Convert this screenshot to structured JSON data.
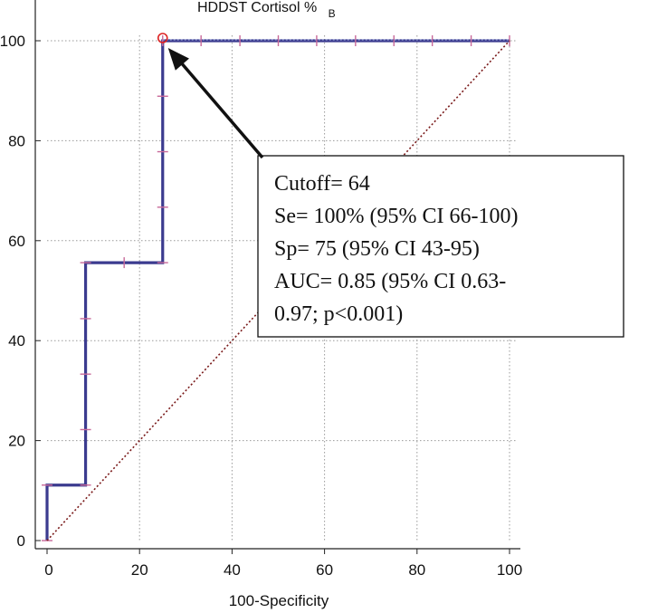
{
  "chart_data": {
    "type": "line",
    "title": "HDDST Cortisol %",
    "title_subscript": "B",
    "xlabel": "100-Specificity",
    "ylabel": "",
    "xlim": [
      0,
      100
    ],
    "ylim": [
      0,
      100
    ],
    "xticks": [
      0,
      20,
      40,
      60,
      80,
      100
    ],
    "yticks": [
      0,
      20,
      40,
      60,
      80,
      100
    ],
    "grid": true,
    "series": [
      {
        "style": "step",
        "color": "#3b3b8f",
        "x": [
          0,
          0,
          8.33,
          8.33,
          25,
          25,
          100
        ],
        "y": [
          0,
          11.1,
          11.1,
          55.6,
          55.6,
          100,
          100
        ],
        "markers": [
          [
            0,
            0
          ],
          [
            0,
            11.1
          ],
          [
            8.33,
            11.1
          ],
          [
            8.33,
            22.2
          ],
          [
            8.33,
            33.3
          ],
          [
            8.33,
            44.4
          ],
          [
            8.33,
            55.6
          ],
          [
            16.67,
            55.6
          ],
          [
            25,
            55.6
          ],
          [
            25,
            66.7
          ],
          [
            25,
            77.8
          ],
          [
            25,
            88.9
          ],
          [
            25,
            100
          ],
          [
            33.3,
            100
          ],
          [
            41.7,
            100
          ],
          [
            50,
            100
          ],
          [
            58.3,
            100
          ],
          [
            66.7,
            100
          ],
          [
            75,
            100
          ],
          [
            83.3,
            100
          ],
          [
            91.7,
            100
          ],
          [
            100,
            100
          ]
        ]
      },
      {
        "style": "diagonal-reference",
        "color": "#7a1a1a",
        "x": [
          0,
          100
        ],
        "y": [
          0,
          100
        ]
      }
    ],
    "optimal_point": {
      "x": 25,
      "y": 100,
      "color": "#dd2222"
    },
    "annotation": {
      "lines": [
        "Cutoff= 64",
        "Se= 100% (95% CI 66-100)",
        "Sp= 75 (95% CI 43-95)",
        "AUC= 0.85 (95% CI 0.63-",
        "0.97; p<0.001)"
      ]
    }
  }
}
